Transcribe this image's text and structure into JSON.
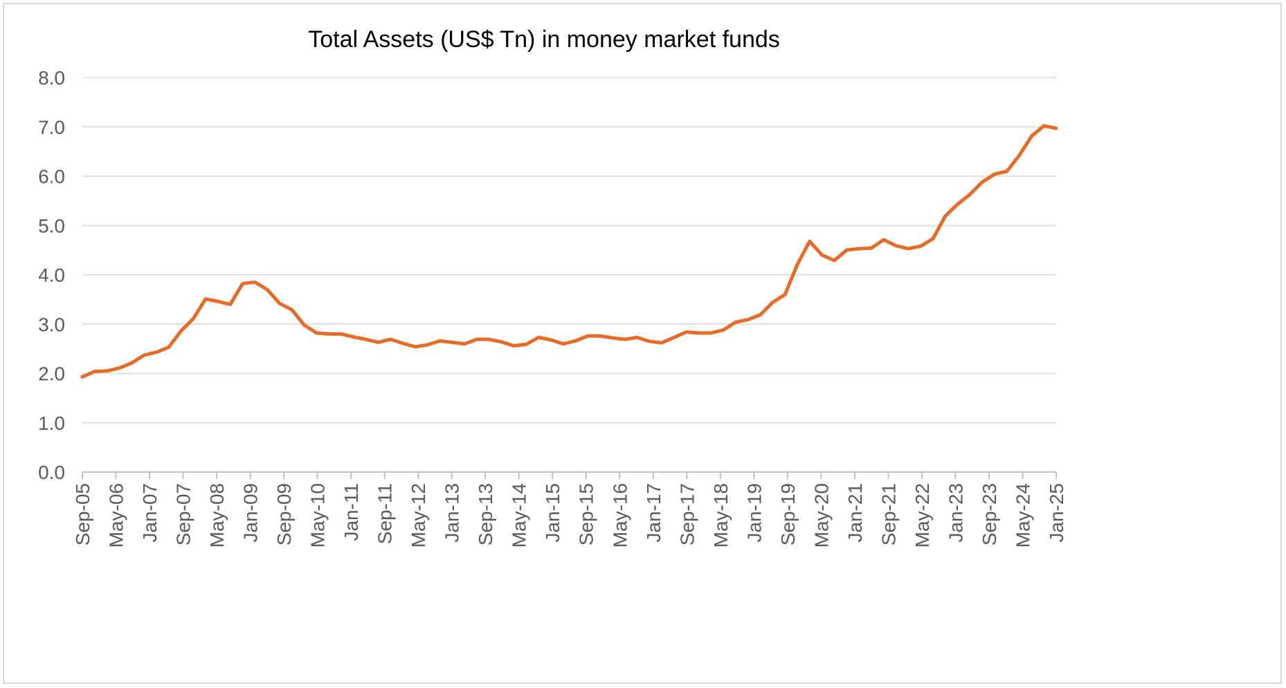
{
  "chart_data": {
    "type": "line",
    "title": "Total Assets (US$ Tn) in money market funds",
    "xlabel": "",
    "ylabel": "",
    "ylim": [
      0,
      8
    ],
    "yticks": [
      "0.0",
      "1.0",
      "2.0",
      "3.0",
      "4.0",
      "5.0",
      "6.0",
      "7.0",
      "8.0"
    ],
    "xticks": [
      "Sep-05",
      "May-06",
      "Jan-07",
      "Sep-07",
      "May-08",
      "Jan-09",
      "Sep-09",
      "May-10",
      "Jan-11",
      "Sep-11",
      "May-12",
      "Jan-13",
      "Sep-13",
      "May-14",
      "Jan-15",
      "Sep-15",
      "May-16",
      "Jan-17",
      "Sep-17",
      "May-18",
      "Jan-19",
      "Sep-19",
      "May-20",
      "Jan-21",
      "Sep-21",
      "May-22",
      "Jan-23",
      "Sep-23",
      "May-24",
      "Jan-25"
    ],
    "grid": true,
    "legend": "none",
    "line_color": "#e86a24",
    "series": [
      {
        "values": [
          1.93,
          2.04,
          2.05,
          2.11,
          2.21,
          2.37,
          2.43,
          2.53,
          2.86,
          3.11,
          3.51,
          3.46,
          3.4,
          3.82,
          3.85,
          3.7,
          3.42,
          3.29,
          2.98,
          2.82,
          2.8,
          2.8,
          2.74,
          2.69,
          2.63,
          2.69,
          2.61,
          2.54,
          2.58,
          2.66,
          2.63,
          2.6,
          2.69,
          2.69,
          2.64,
          2.56,
          2.59,
          2.73,
          2.68,
          2.6,
          2.66,
          2.76,
          2.76,
          2.72,
          2.69,
          2.73,
          2.65,
          2.62,
          2.73,
          2.84,
          2.82,
          2.82,
          2.88,
          3.04,
          3.09,
          3.19,
          3.44,
          3.6,
          4.21,
          4.68,
          4.4,
          4.29,
          4.5,
          4.53,
          4.54,
          4.71,
          4.59,
          4.53,
          4.58,
          4.73,
          5.19,
          5.43,
          5.63,
          5.88,
          6.04,
          6.1,
          6.42,
          6.81,
          7.02,
          6.97
        ]
      }
    ]
  }
}
